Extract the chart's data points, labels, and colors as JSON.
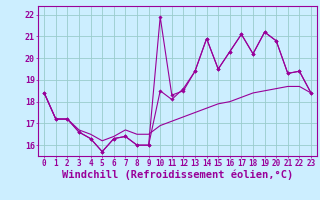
{
  "xlabel": "Windchill (Refroidissement éolien,°C)",
  "ylabel": "",
  "background_color": "#cceeff",
  "line_color": "#990099",
  "grid_color": "#99cccc",
  "xlim": [
    -0.5,
    23.5
  ],
  "ylim": [
    15.5,
    22.4
  ],
  "xticks": [
    0,
    1,
    2,
    3,
    4,
    5,
    6,
    7,
    8,
    9,
    10,
    11,
    12,
    13,
    14,
    15,
    16,
    17,
    18,
    19,
    20,
    21,
    22,
    23
  ],
  "xtick_labels": [
    "0",
    "1",
    "2",
    "3",
    "4",
    "5",
    "6",
    "7",
    "8",
    "9",
    "10",
    "11",
    "12",
    "13",
    "14",
    "15",
    "16",
    "17",
    "18",
    "19",
    "20",
    "21",
    "22",
    "23"
  ],
  "yticks": [
    16,
    17,
    18,
    19,
    20,
    21,
    22
  ],
  "series1_x": [
    0,
    1,
    2,
    3,
    4,
    5,
    6,
    7,
    8,
    9,
    10,
    11,
    12,
    13,
    14,
    15,
    16,
    17,
    18,
    19,
    20,
    21,
    22,
    23
  ],
  "series1_y": [
    18.4,
    17.2,
    17.2,
    16.6,
    16.3,
    15.7,
    16.3,
    16.4,
    16.0,
    16.0,
    21.9,
    18.3,
    18.5,
    19.4,
    20.9,
    19.5,
    20.3,
    21.1,
    20.2,
    21.2,
    20.8,
    19.3,
    19.4,
    18.4
  ],
  "series2_x": [
    0,
    1,
    2,
    3,
    4,
    5,
    6,
    7,
    8,
    9,
    10,
    11,
    12,
    13,
    14,
    15,
    16,
    17,
    18,
    19,
    20,
    21,
    22,
    23
  ],
  "series2_y": [
    18.4,
    17.2,
    17.2,
    16.6,
    16.3,
    15.7,
    16.3,
    16.4,
    16.0,
    16.0,
    18.5,
    18.1,
    18.6,
    19.4,
    20.9,
    19.5,
    20.3,
    21.1,
    20.2,
    21.2,
    20.8,
    19.3,
    19.4,
    18.4
  ],
  "series3_x": [
    0,
    1,
    2,
    3,
    4,
    5,
    6,
    7,
    8,
    9,
    10,
    11,
    12,
    13,
    14,
    15,
    16,
    17,
    18,
    19,
    20,
    21,
    22,
    23
  ],
  "series3_y": [
    18.4,
    17.2,
    17.2,
    16.7,
    16.5,
    16.2,
    16.4,
    16.7,
    16.5,
    16.5,
    16.9,
    17.1,
    17.3,
    17.5,
    17.7,
    17.9,
    18.0,
    18.2,
    18.4,
    18.5,
    18.6,
    18.7,
    18.7,
    18.4
  ],
  "tick_fontsize": 5.5,
  "xlabel_fontsize": 7.5
}
